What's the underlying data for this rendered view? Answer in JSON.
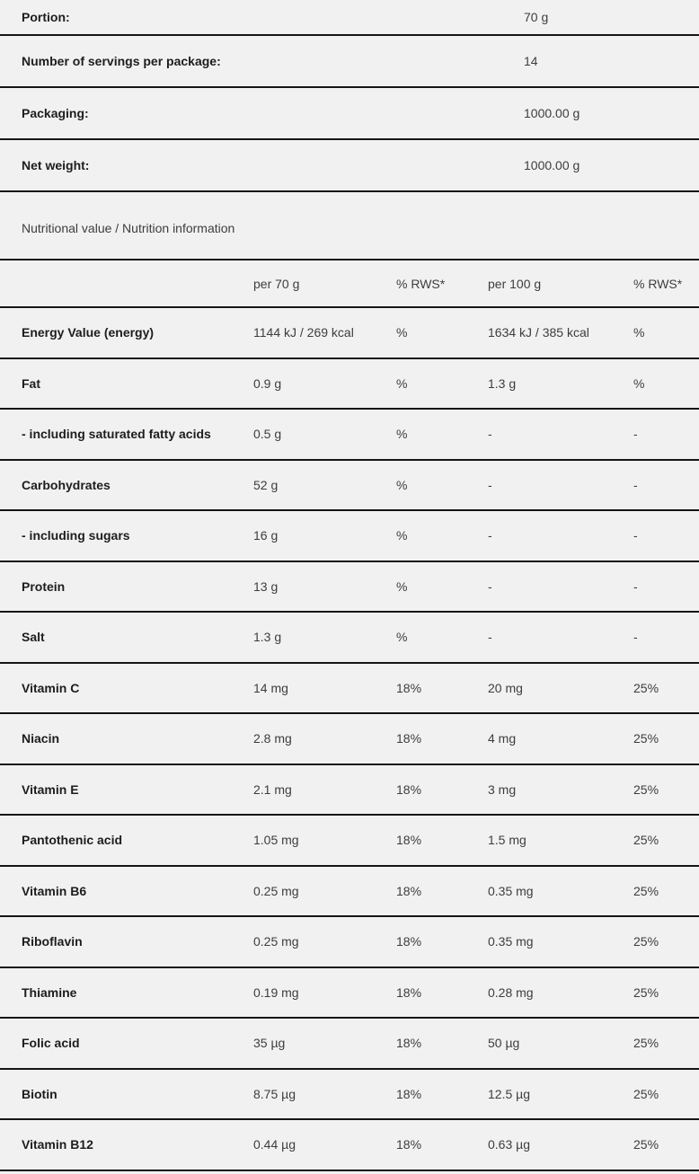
{
  "colors": {
    "background": "#f1f1f1",
    "divider": "#151515",
    "label_text": "#1d1d1d",
    "value_text": "#3d3d3d"
  },
  "info_rows": [
    {
      "label": "Portion:",
      "value": "70 g"
    },
    {
      "label": "Number of servings per package:",
      "value": "14"
    },
    {
      "label": "Packaging:",
      "value": "1000.00 g"
    },
    {
      "label": "Net weight:",
      "value": "1000.00 g"
    }
  ],
  "section_title": "Nutritional value / Nutrition information",
  "nutrition_table": {
    "headers": [
      "",
      "per 70 g",
      "% RWS*",
      "per 100 g",
      "% RWS*"
    ],
    "rows": [
      {
        "name": "Energy Value (energy)",
        "per_portion": "1144 kJ / 269 kcal",
        "rws_portion": "%",
        "per_100": "1634 kJ / 385 kcal",
        "rws_100": "%"
      },
      {
        "name": "Fat",
        "per_portion": "0.9 g",
        "rws_portion": "%",
        "per_100": "1.3 g",
        "rws_100": "%"
      },
      {
        "name": "- including saturated fatty acids",
        "per_portion": "0.5 g",
        "rws_portion": "%",
        "per_100": "-",
        "rws_100": "-"
      },
      {
        "name": "Carbohydrates",
        "per_portion": "52 g",
        "rws_portion": "%",
        "per_100": "-",
        "rws_100": "-"
      },
      {
        "name": "- including sugars",
        "per_portion": "16 g",
        "rws_portion": "%",
        "per_100": "-",
        "rws_100": "-"
      },
      {
        "name": "Protein",
        "per_portion": "13 g",
        "rws_portion": "%",
        "per_100": "-",
        "rws_100": "-"
      },
      {
        "name": "Salt",
        "per_portion": "1.3 g",
        "rws_portion": "%",
        "per_100": "-",
        "rws_100": "-"
      },
      {
        "name": "Vitamin C",
        "per_portion": "14 mg",
        "rws_portion": "18%",
        "per_100": "20 mg",
        "rws_100": "25%"
      },
      {
        "name": "Niacin",
        "per_portion": "2.8 mg",
        "rws_portion": "18%",
        "per_100": "4 mg",
        "rws_100": "25%"
      },
      {
        "name": "Vitamin E",
        "per_portion": "2.1 mg",
        "rws_portion": "18%",
        "per_100": "3 mg",
        "rws_100": "25%"
      },
      {
        "name": "Pantothenic acid",
        "per_portion": "1.05 mg",
        "rws_portion": "18%",
        "per_100": "1.5 mg",
        "rws_100": "25%"
      },
      {
        "name": "Vitamin B6",
        "per_portion": "0.25 mg",
        "rws_portion": "18%",
        "per_100": "0.35 mg",
        "rws_100": "25%"
      },
      {
        "name": "Riboflavin",
        "per_portion": "0.25 mg",
        "rws_portion": "18%",
        "per_100": "0.35 mg",
        "rws_100": "25%"
      },
      {
        "name": "Thiamine",
        "per_portion": "0.19 mg",
        "rws_portion": "18%",
        "per_100": "0.28 mg",
        "rws_100": "25%"
      },
      {
        "name": "Folic acid",
        "per_portion": "35 µg",
        "rws_portion": "18%",
        "per_100": "50 µg",
        "rws_100": "25%"
      },
      {
        "name": "Biotin",
        "per_portion": "8.75 µg",
        "rws_portion": "18%",
        "per_100": "12.5 µg",
        "rws_100": "25%"
      },
      {
        "name": "Vitamin B12",
        "per_portion": "0.44 µg",
        "rws_portion": "18%",
        "per_100": "0.63 µg",
        "rws_100": "25%"
      }
    ]
  }
}
